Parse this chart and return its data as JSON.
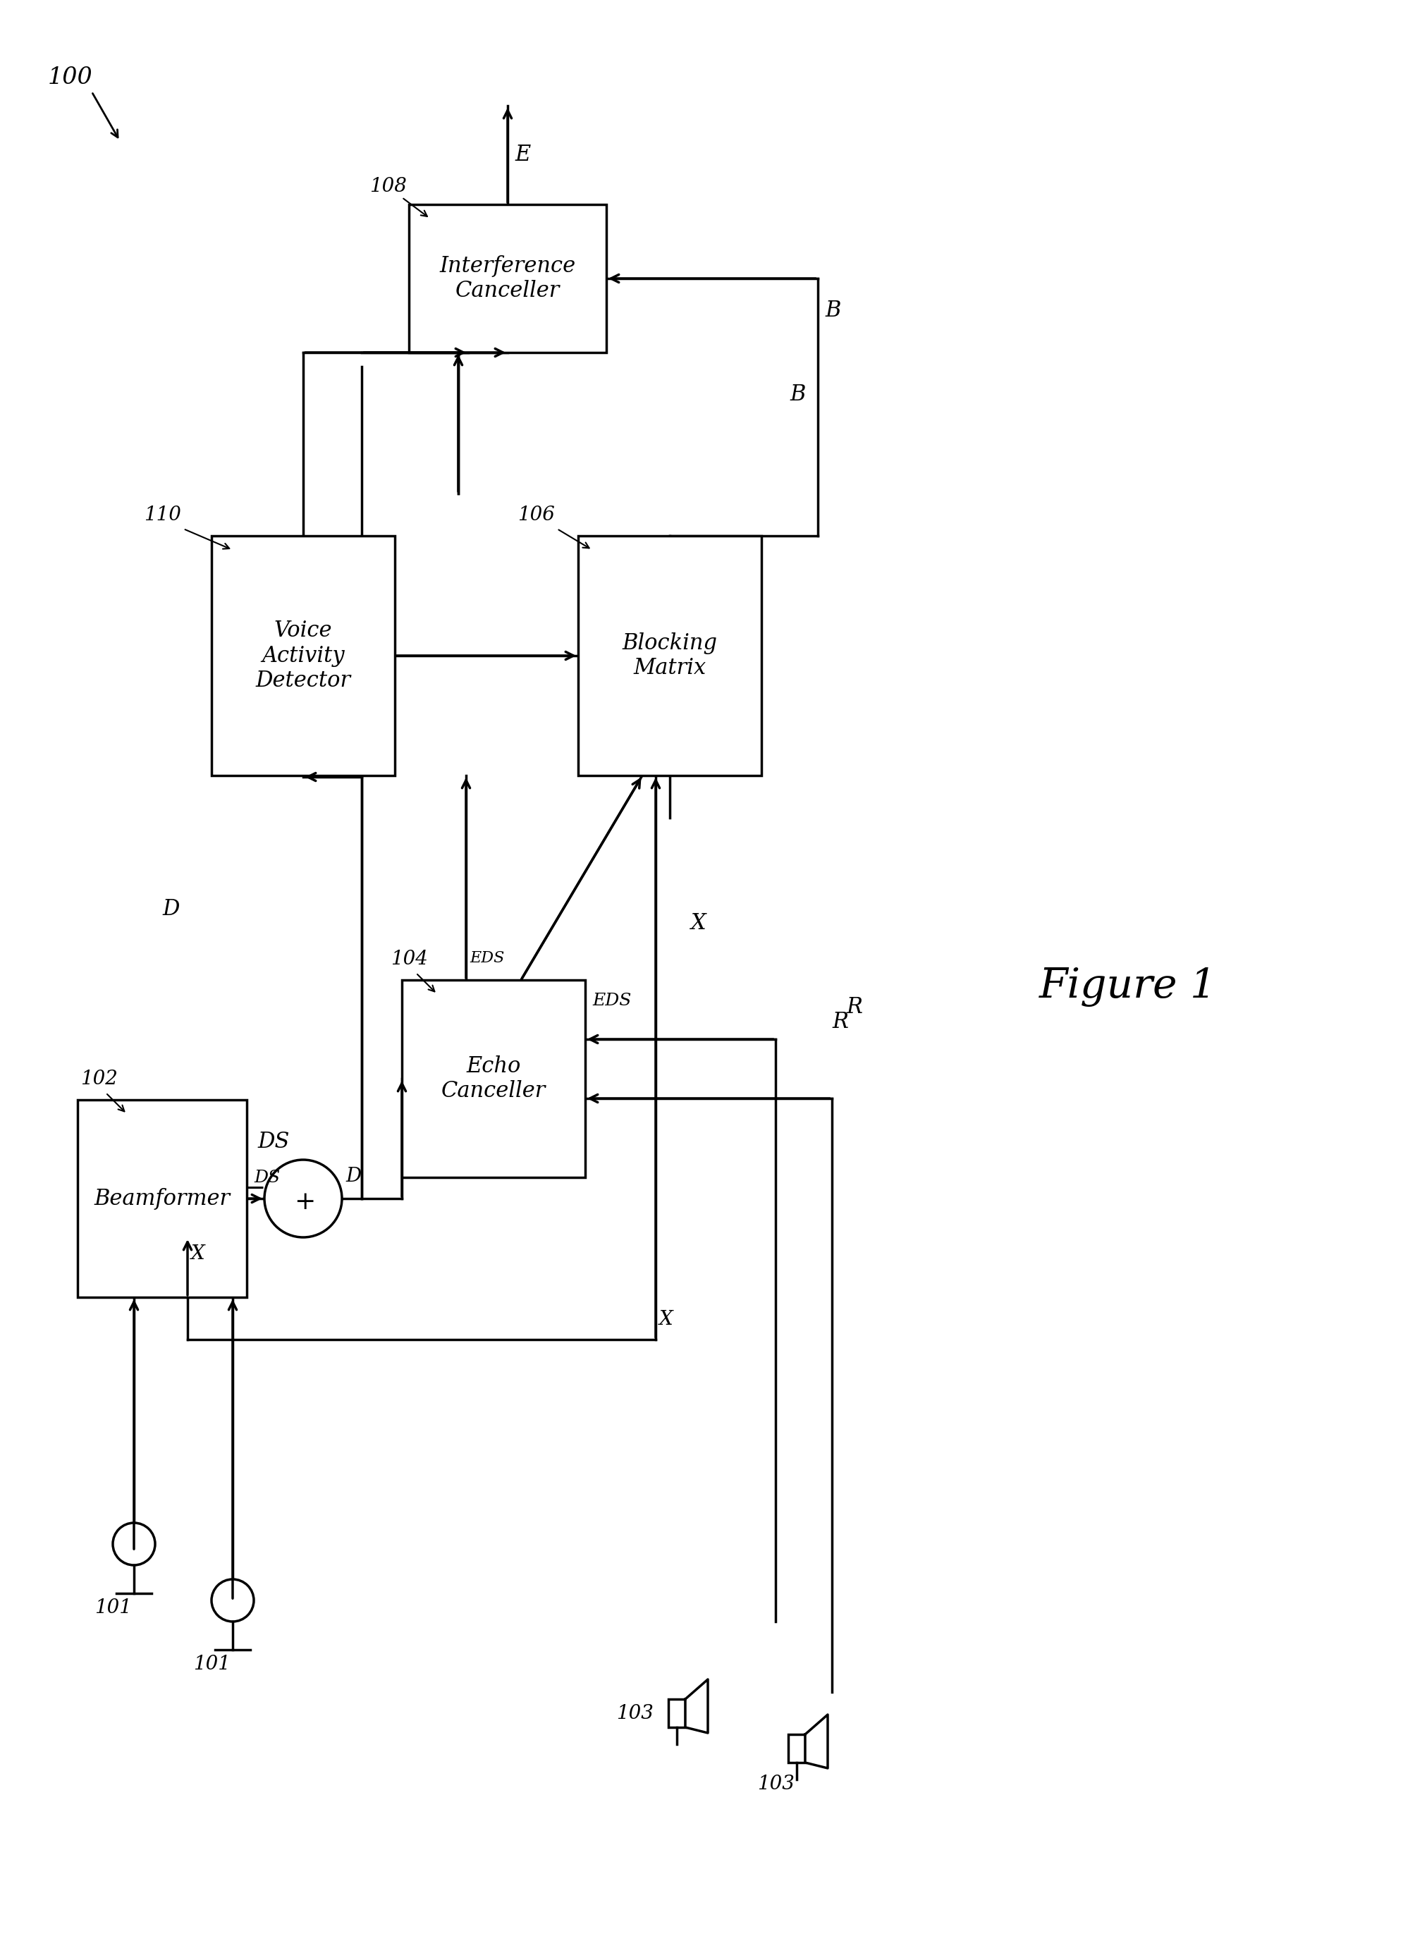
{
  "figure_label": "Figure 1",
  "system_label": "100",
  "background_color": "#ffffff",
  "box_color": "#ffffff",
  "box_edge_color": "#000000",
  "line_color": "#000000",
  "text_color": "#000000",
  "blocks": {
    "interference_canceller": {
      "label": "Interference\nCanceller",
      "id": "108"
    },
    "voice_activity_detector": {
      "label": "Voice\nActivity\nDetector",
      "id": "110"
    },
    "blocking_matrix": {
      "label": "Blocking\nMatrix",
      "id": "106"
    },
    "echo_canceller": {
      "label": "Echo\nCanceller",
      "id": "104"
    },
    "beamformer": {
      "label": "Beamformer",
      "id": "102"
    },
    "sum_junction": {
      "label": "+",
      "minus_label": "-"
    }
  },
  "signals": {
    "E": "E",
    "B": "B",
    "X": "X",
    "D": "D",
    "DS": "DS",
    "R": "R",
    "EDS": "EDS"
  },
  "microphone_ids": [
    "101",
    "101"
  ],
  "speaker_ids": [
    "103",
    "103"
  ]
}
